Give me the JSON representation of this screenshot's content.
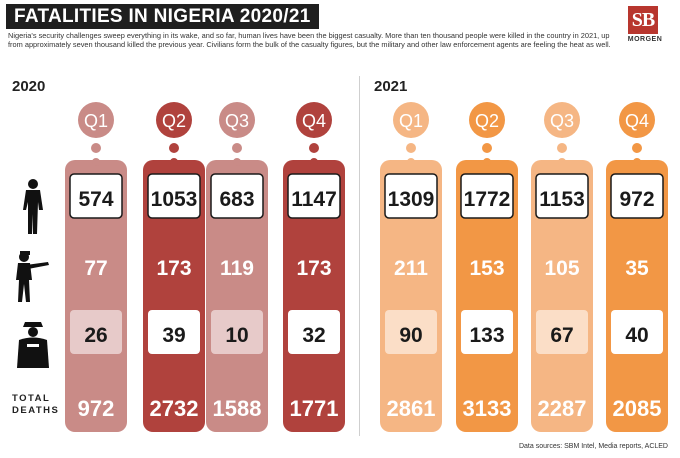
{
  "title": "FATALITIES IN NIGERIA 2020/21",
  "description": "Nigeria's security challenges sweep everything in its wake, and so far, human lives have been the biggest casualty. More than ten thousand people were killed in the country in 2021, up from approximately seven thousand killed the previous year. Civilians form the bulk of the casualty figures, but the military and other law enforcement agents are feeling the heat as well.",
  "logo": {
    "mark": "SB",
    "word": "MORGEN"
  },
  "source": "Data sources: SBM Intel, Media reports, ACLED",
  "row_labels": {
    "total_line1": "TOTAL",
    "total_line2": "DEATHS"
  },
  "icons": {
    "row1": "civilian-silhouette-icon",
    "row2": "armed-soldier-silhouette-icon",
    "row3": "police-officer-silhouette-icon"
  },
  "colors": {
    "y2020_light": "#c98b87",
    "y2020_dark": "#b0423d",
    "y2021_light": "#f5b684",
    "y2021_dark": "#f29745",
    "text": "#1a1a1a"
  },
  "chart_data": {
    "type": "table",
    "rows": [
      "civilians",
      "armed forces",
      "police",
      "total deaths"
    ],
    "years": [
      {
        "year": "2020",
        "quarters": [
          {
            "label": "Q1",
            "values": [
              574,
              77,
              26
            ],
            "total": 972
          },
          {
            "label": "Q2",
            "values": [
              1053,
              173,
              39
            ],
            "total": 2732
          },
          {
            "label": "Q3",
            "values": [
              683,
              119,
              10
            ],
            "total": 1588
          },
          {
            "label": "Q4",
            "values": [
              1147,
              173,
              32
            ],
            "total": 1771
          }
        ]
      },
      {
        "year": "2021",
        "quarters": [
          {
            "label": "Q1",
            "values": [
              1309,
              211,
              90
            ],
            "total": 2861
          },
          {
            "label": "Q2",
            "values": [
              1772,
              153,
              133
            ],
            "total": 3133
          },
          {
            "label": "Q3",
            "values": [
              1153,
              105,
              67
            ],
            "total": 2287
          },
          {
            "label": "Q4",
            "values": [
              972,
              35,
              40
            ],
            "total": 2085
          }
        ]
      }
    ]
  }
}
